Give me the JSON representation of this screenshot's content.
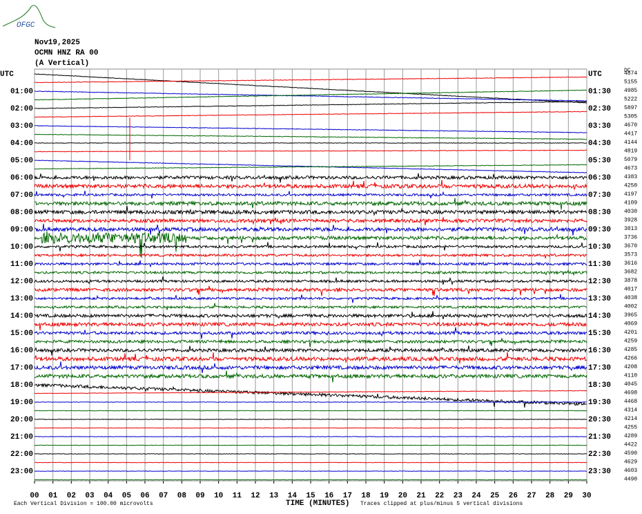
{
  "header": {
    "logo": "OFGC",
    "date": "Nov19,2025",
    "station": "OCMN HNZ RA 00",
    "component": "(A Vertical)"
  },
  "left_labels": [
    "UTC",
    "01:00",
    "02:00",
    "03:00",
    "04:00",
    "05:00",
    "06:00",
    "07:00",
    "08:00",
    "09:00",
    "10:00",
    "11:00",
    "12:00",
    "13:00",
    "14:00",
    "15:00",
    "16:00",
    "17:00",
    "18:00",
    "19:00",
    "20:00",
    "21:00",
    "22:00",
    "23:00"
  ],
  "right_labels": [
    "UTC",
    "01:30",
    "02:30",
    "03:30",
    "04:30",
    "05:30",
    "06:30",
    "07:30",
    "08:30",
    "09:30",
    "10:30",
    "11:30",
    "12:30",
    "13:30",
    "14:30",
    "15:30",
    "16:30",
    "17:30",
    "18:30",
    "19:30",
    "20:30",
    "21:30",
    "22:30",
    "23:30"
  ],
  "dc_header": "DC",
  "dc_values": [
    "4874",
    "5155",
    "4985",
    "5222",
    "5897",
    "5305",
    "4670",
    "4417",
    "4144",
    "4819",
    "5079",
    "4673",
    "4383",
    "4250",
    "4197",
    "4109",
    "4030",
    "3928",
    "3813",
    "3736",
    "3670",
    "3573",
    "3616",
    "3682",
    "3878",
    "4017",
    "4038",
    "4002",
    "3965",
    "4069",
    "4201",
    "4259",
    "4285",
    "4266",
    "4208",
    "4110",
    "4045",
    "4698",
    "4468",
    "4314",
    "4214",
    "4255",
    "4289",
    "4422",
    "4590",
    "4629",
    "4603",
    "4490"
  ],
  "x_ticks": [
    "00",
    "01",
    "02",
    "03",
    "04",
    "05",
    "06",
    "07",
    "08",
    "09",
    "10",
    "11",
    "12",
    "13",
    "14",
    "15",
    "16",
    "17",
    "18",
    "19",
    "20",
    "21",
    "22",
    "23",
    "24",
    "25",
    "26",
    "27",
    "28",
    "29",
    "30"
  ],
  "footer": {
    "division": "Each Vertical Division =  100.00 microvolts",
    "x_title": "TIME (MINUTES)",
    "clip_note": "Traces clipped at plus/minus 5 vertical divisions"
  }
}
